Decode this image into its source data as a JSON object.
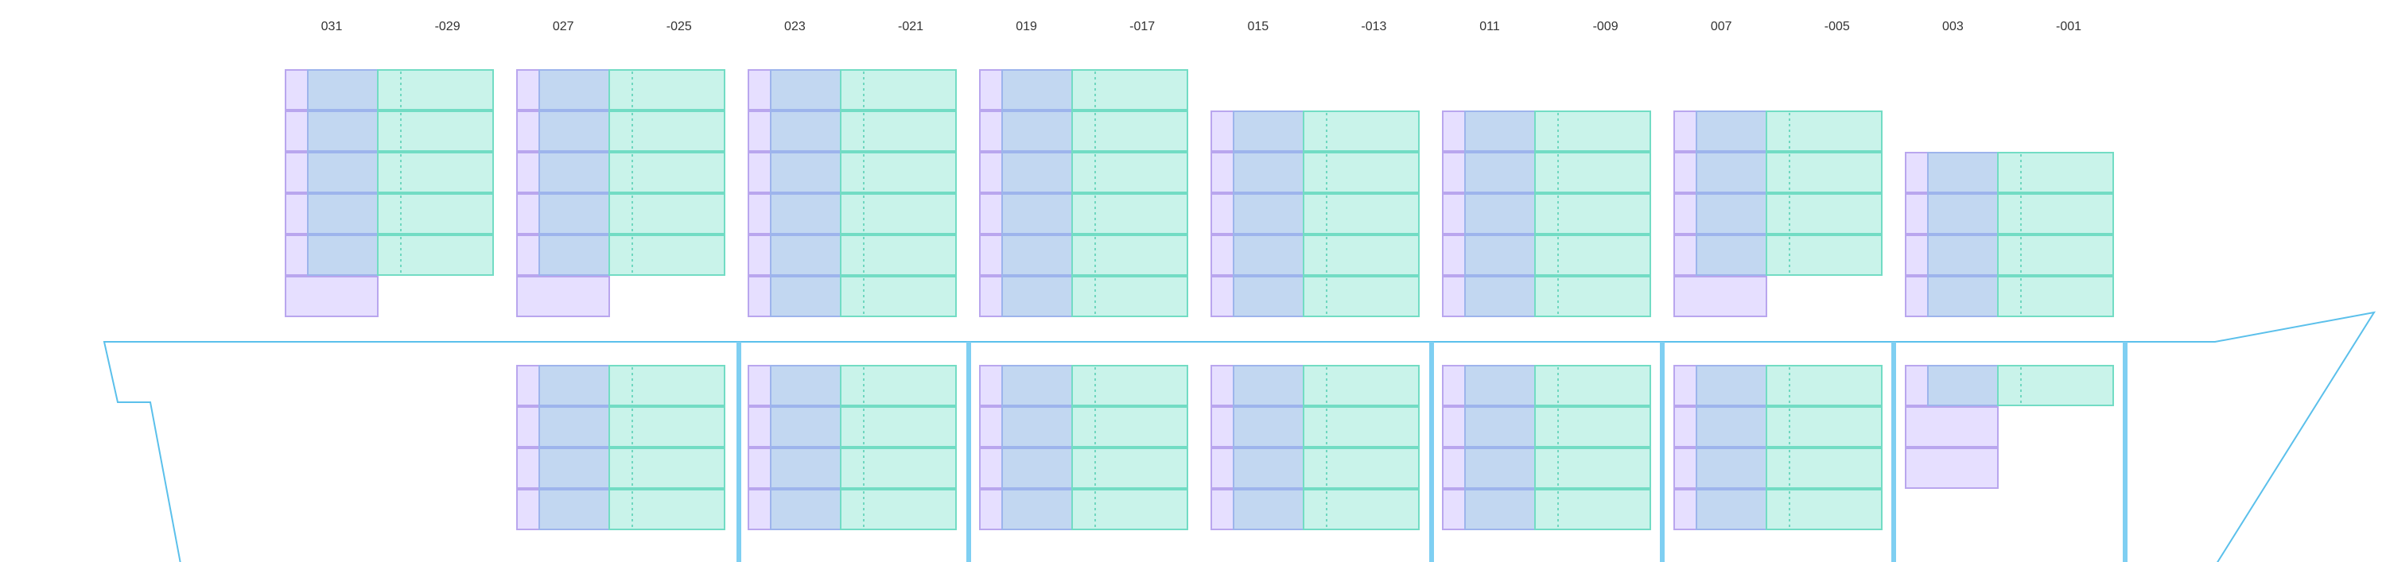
{
  "bays": [
    {
      "label": "031",
      "hasDeck": true,
      "deck": [
        "purple",
        "full",
        "full",
        "full",
        "full",
        "full"
      ],
      "hold": []
    },
    {
      "label": "-029",
      "hasDeck": false
    },
    {
      "label": "027",
      "hasDeck": true,
      "deck": [
        "purple",
        "full",
        "full",
        "full",
        "full",
        "full"
      ],
      "hold": [
        "full",
        "full",
        "full",
        "full"
      ]
    },
    {
      "label": "-025",
      "hasDeck": false
    },
    {
      "label": "023",
      "hasDeck": true,
      "deck": [
        "full",
        "full",
        "full",
        "full",
        "full",
        "full"
      ],
      "hold": [
        "full",
        "full",
        "full",
        "full"
      ]
    },
    {
      "label": "-021",
      "hasDeck": false
    },
    {
      "label": "019",
      "hasDeck": true,
      "deck": [
        "full",
        "full",
        "full",
        "full",
        "full",
        "full"
      ],
      "hold": [
        "full",
        "full",
        "full",
        "full"
      ]
    },
    {
      "label": "-017",
      "hasDeck": false
    },
    {
      "label": "015",
      "hasDeck": true,
      "deck": [
        "full",
        "full",
        "full",
        "full",
        "full"
      ],
      "hold": [
        "full",
        "full",
        "full",
        "full"
      ]
    },
    {
      "label": "-013",
      "hasDeck": false
    },
    {
      "label": "011",
      "hasDeck": true,
      "deck": [
        "full",
        "full",
        "full",
        "full",
        "full"
      ],
      "hold": [
        "full",
        "full",
        "full",
        "full"
      ]
    },
    {
      "label": "-009",
      "hasDeck": false
    },
    {
      "label": "007",
      "hasDeck": true,
      "deck": [
        "purple",
        "full",
        "full",
        "full",
        "full"
      ],
      "hold": [
        "full",
        "full",
        "full",
        "full"
      ]
    },
    {
      "label": "-005",
      "hasDeck": false
    },
    {
      "label": "003",
      "hasDeck": true,
      "deck": [
        "full",
        "full",
        "full",
        "full"
      ],
      "hold": [
        "full",
        "purple",
        "purple"
      ]
    },
    {
      "label": "-001",
      "hasDeck": false
    }
  ],
  "colors": {
    "hull": "#5bc0eb",
    "bulkhead": "#7fcff2",
    "slot_purple": "#e6dfff",
    "slot_blue": "#c2d7f1",
    "slot_teal": "#c9f3ea"
  }
}
